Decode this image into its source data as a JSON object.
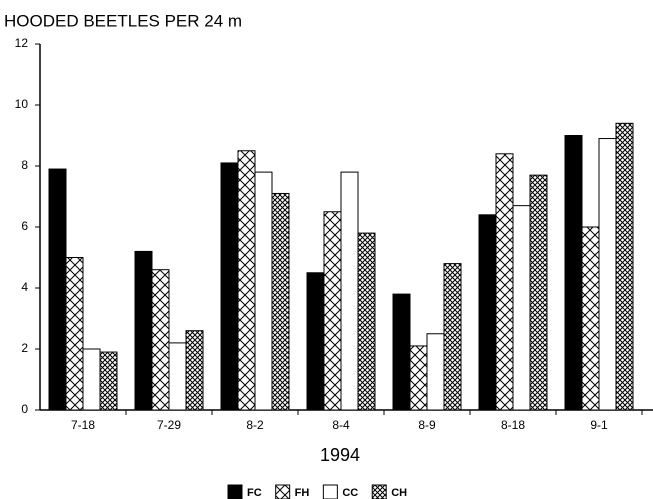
{
  "chart_data": {
    "type": "bar",
    "title": "HOODED BEETLES PER 24 m",
    "x_label": "1994",
    "categories": [
      "7-18",
      "7-29",
      "8-2",
      "8-4",
      "8-9",
      "8-18",
      "9-1"
    ],
    "series": [
      {
        "name": "FC",
        "color": "#000000",
        "pattern": "solid",
        "values": [
          7.9,
          5.2,
          8.1,
          4.5,
          3.8,
          6.4,
          9.0
        ]
      },
      {
        "name": "FH",
        "color": "#000000",
        "pattern": "sparse-crosshatch",
        "values": [
          5.0,
          4.6,
          8.5,
          6.5,
          2.1,
          8.4,
          6.0
        ]
      },
      {
        "name": "CC",
        "color": "#000000",
        "pattern": "none",
        "values": [
          2.0,
          2.2,
          7.8,
          7.8,
          2.5,
          6.7,
          8.9
        ]
      },
      {
        "name": "CH",
        "color": "#000000",
        "pattern": "dense-crosshatch",
        "values": [
          1.9,
          2.6,
          7.1,
          5.8,
          4.8,
          7.7,
          9.4
        ]
      }
    ],
    "ylim": [
      0,
      12
    ],
    "yticks": [
      0,
      2,
      4,
      6,
      8,
      10,
      12
    ],
    "grid": false,
    "legend": "bottom"
  }
}
